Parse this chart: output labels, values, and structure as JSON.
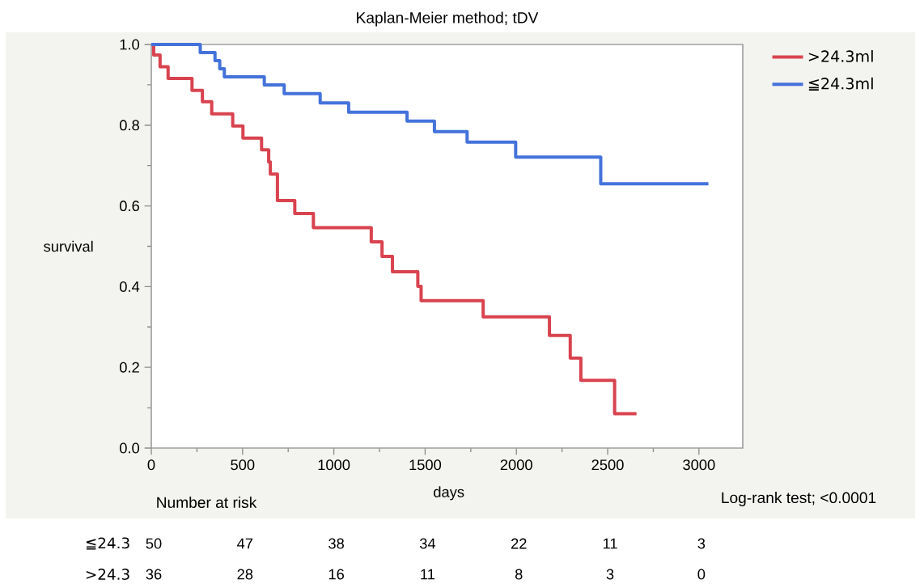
{
  "chart_data": {
    "type": "step",
    "title": "Kaplan-Meier method; tDV",
    "xlabel": "days",
    "ylabel": "survival",
    "xlim": [
      0,
      3240
    ],
    "ylim": [
      0,
      1.0
    ],
    "xticks": [
      0,
      500,
      1000,
      1500,
      2000,
      2500,
      3000
    ],
    "yticks": [
      {
        "value": 0,
        "label": "0.0"
      },
      {
        "value": 0.2,
        "label": "0.2"
      },
      {
        "value": 0.4,
        "label": "0.4"
      },
      {
        "value": 0.6,
        "label": "0.6"
      },
      {
        "value": 0.8,
        "label": "0.8"
      },
      {
        "value": 1.0,
        "label": "1.0"
      }
    ],
    "legend": "top right",
    "grid": false,
    "marker": "none",
    "line_style": "solid",
    "series": [
      {
        "name": ">24.3ml",
        "color": "#d9434f",
        "x": [
          0,
          13,
          48,
          92,
          223,
          280,
          331,
          446,
          502,
          604,
          643,
          652,
          691,
          786,
          888,
          1205,
          1264,
          1321,
          1460,
          1478,
          1818,
          2181,
          2295,
          2353,
          2538,
          2658
        ],
        "values": [
          1.0,
          0.974,
          0.945,
          0.916,
          0.886,
          0.858,
          0.828,
          0.798,
          0.768,
          0.739,
          0.709,
          0.679,
          0.613,
          0.581,
          0.546,
          0.511,
          0.475,
          0.437,
          0.401,
          0.365,
          0.325,
          0.279,
          0.223,
          0.168,
          0.085,
          0.085
        ]
      },
      {
        "name": "≦24.3ml",
        "color": "#4472db",
        "x": [
          0,
          268,
          349,
          375,
          400,
          619,
          728,
          925,
          1081,
          1401,
          1551,
          1730,
          1996,
          2462,
          3052
        ],
        "values": [
          1.0,
          0.98,
          0.96,
          0.94,
          0.92,
          0.9,
          0.878,
          0.855,
          0.832,
          0.81,
          0.784,
          0.758,
          0.721,
          0.655,
          0.655
        ]
      }
    ],
    "annotations": [
      "Number at risk",
      "Log-rank test; <0.0001",
      "≦24.3",
      "50",
      "47",
      "38",
      "34",
      "22",
      "11",
      "3",
      ">24.3",
      "36",
      "28",
      "16",
      "11",
      "8",
      "3",
      "0"
    ]
  }
}
